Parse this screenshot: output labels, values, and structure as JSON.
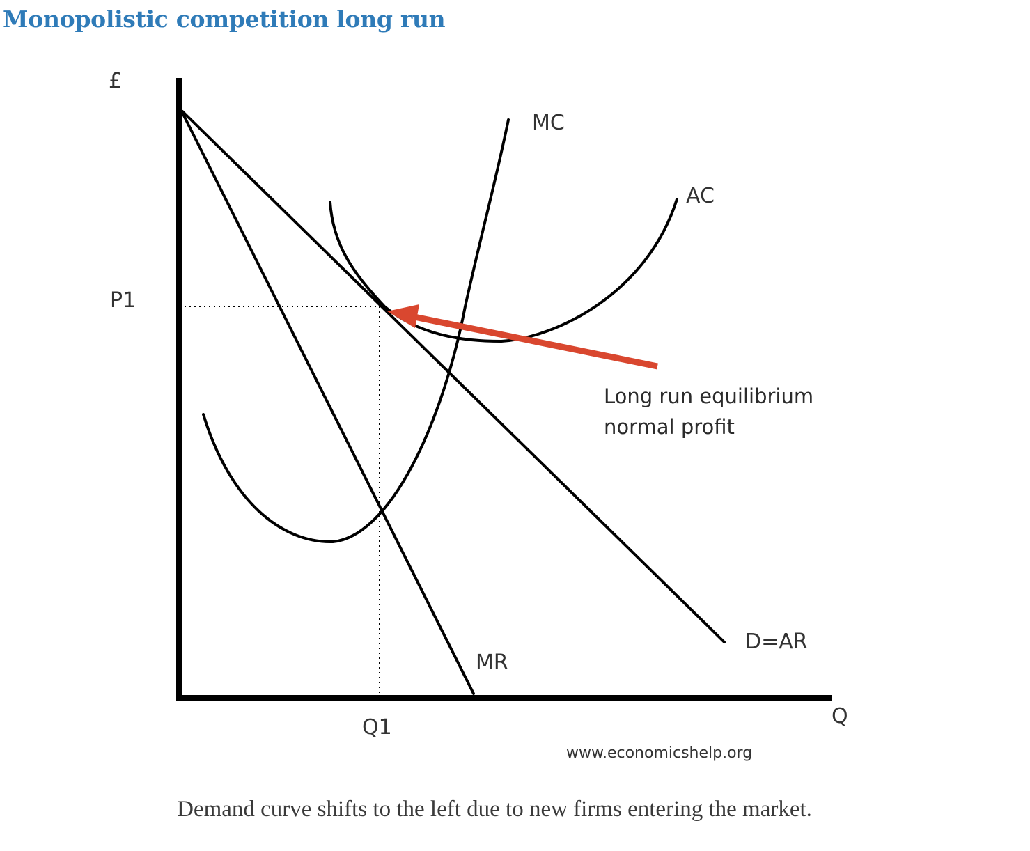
{
  "heading": "Monopolistic competition long run",
  "diagram": {
    "y_axis_label": "£",
    "x_axis_label": "Q",
    "price_label": "P1",
    "quantity_label": "Q1",
    "curves": {
      "mc": "MC",
      "ac": "AC",
      "mr": "MR",
      "demand": "D=AR"
    },
    "annotation_line1": "Long run equilibrium",
    "annotation_line2": "normal profit",
    "credit": "www.economicshelp.org",
    "colors": {
      "lines": "#000000",
      "arrow": "#d9472f",
      "heading": "#2f7bb8"
    }
  },
  "caption": "Demand curve shifts to the left due to new firms entering the market."
}
